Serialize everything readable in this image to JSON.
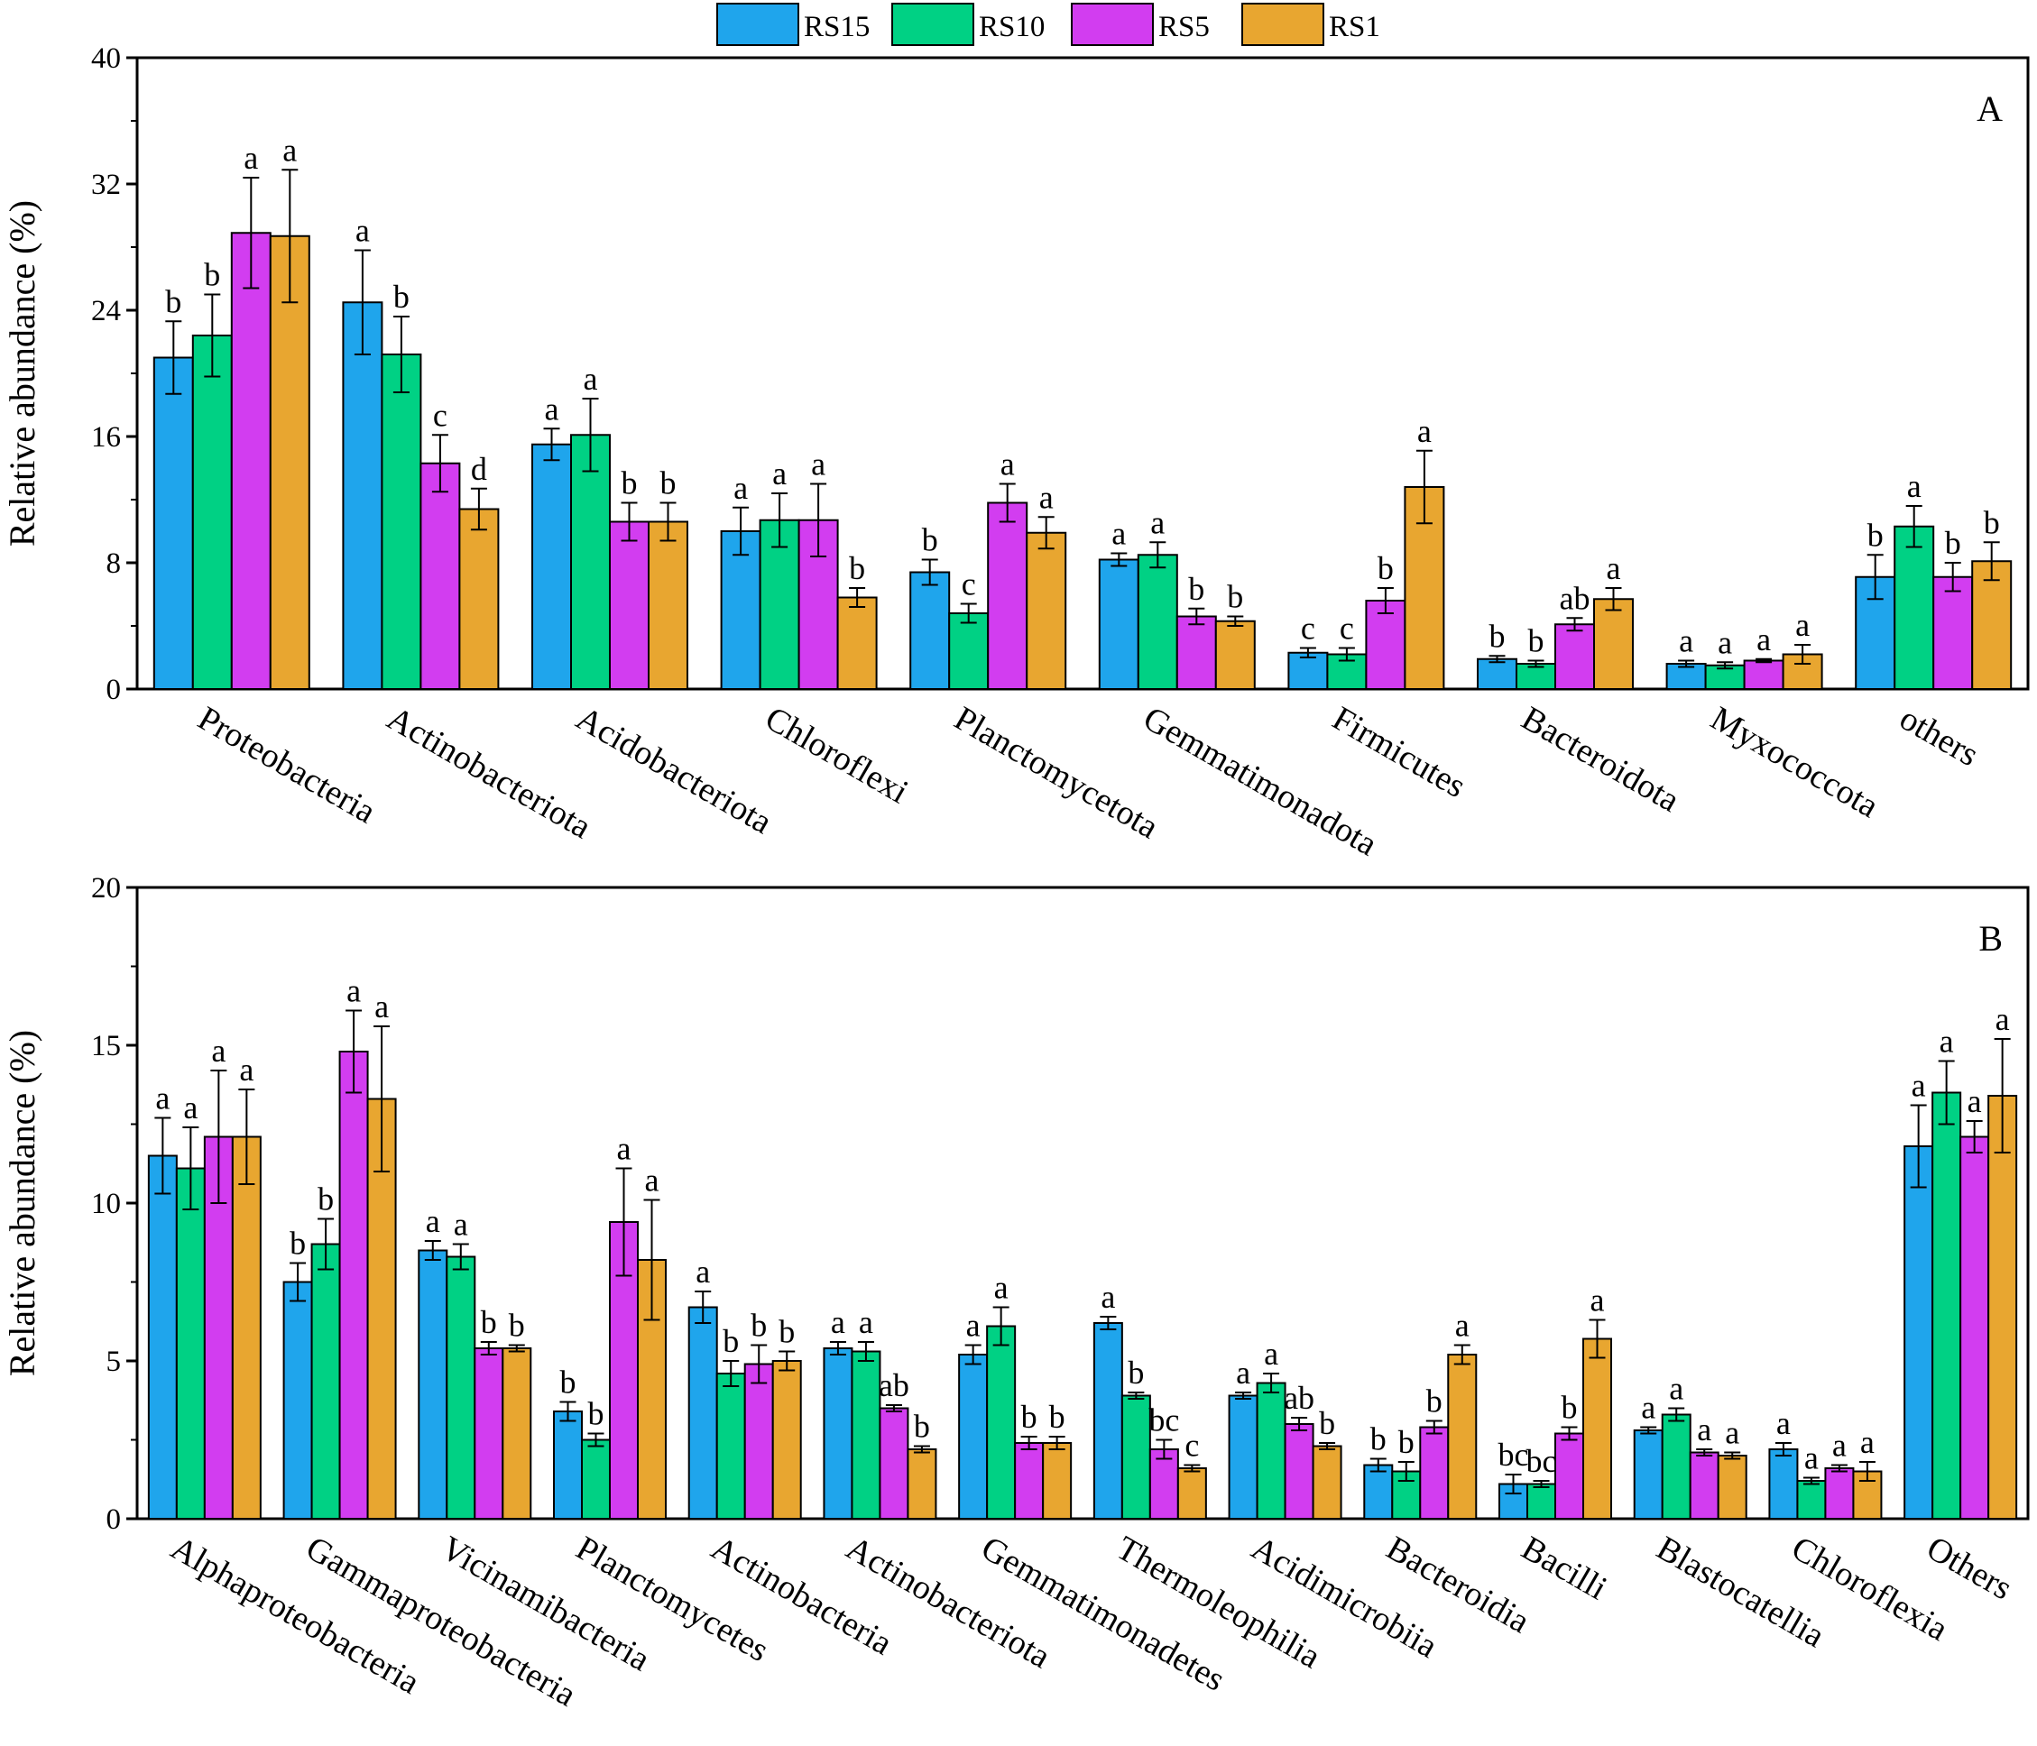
{
  "legend": {
    "series": [
      {
        "name": "RS15",
        "color": "#1fa5ec"
      },
      {
        "name": "RS10",
        "color": "#00d184"
      },
      {
        "name": "RS5",
        "color": "#d23df0"
      },
      {
        "name": "RS1",
        "color": "#e8a630"
      }
    ]
  },
  "chart_data": [
    {
      "type": "bar",
      "panel_label": "A",
      "ylabel": "Relative abundance (%)",
      "ylim": [
        0,
        40
      ],
      "yticks": [
        0,
        8,
        16,
        24,
        32,
        40
      ],
      "grid": false,
      "legend_position": "top-center",
      "categories": [
        "Proteobacteria",
        "Actinobacteriota",
        "Acidobacteriota",
        "Chloroflexi",
        "Planctomycetota",
        "Gemmatimonadota",
        "Firmicutes",
        "Bacteroidota",
        "Myxococcota",
        "others"
      ],
      "series": [
        {
          "name": "RS15",
          "values": [
            21.0,
            24.5,
            15.5,
            10.0,
            7.4,
            8.2,
            2.3,
            1.9,
            1.6,
            7.1
          ],
          "errors": [
            2.3,
            3.3,
            1.0,
            1.5,
            0.8,
            0.4,
            0.3,
            0.2,
            0.2,
            1.4
          ],
          "letters": [
            "b",
            "a",
            "a",
            "a",
            "b",
            "a",
            "c",
            "b",
            "a",
            "b"
          ]
        },
        {
          "name": "RS10",
          "values": [
            22.4,
            21.2,
            16.1,
            10.7,
            4.8,
            8.5,
            2.2,
            1.6,
            1.5,
            10.3
          ],
          "errors": [
            2.6,
            2.4,
            2.3,
            1.7,
            0.6,
            0.8,
            0.4,
            0.2,
            0.2,
            1.3
          ],
          "letters": [
            "b",
            "b",
            "a",
            "a",
            "c",
            "a",
            "c",
            "b",
            "a",
            "a"
          ]
        },
        {
          "name": "RS5",
          "values": [
            28.9,
            14.3,
            10.6,
            10.7,
            11.8,
            4.6,
            5.6,
            4.1,
            1.8,
            7.1
          ],
          "errors": [
            3.5,
            1.8,
            1.2,
            2.3,
            1.2,
            0.5,
            0.8,
            0.4,
            0.1,
            0.9
          ],
          "letters": [
            "a",
            "c",
            "b",
            "a",
            "a",
            "b",
            "b",
            "ab",
            "a",
            "b"
          ]
        },
        {
          "name": "RS1",
          "values": [
            28.7,
            11.4,
            10.6,
            5.8,
            9.9,
            4.3,
            12.8,
            5.7,
            2.2,
            8.1
          ],
          "errors": [
            4.2,
            1.3,
            1.2,
            0.6,
            1.0,
            0.3,
            2.3,
            0.7,
            0.6,
            1.2
          ],
          "letters": [
            "a",
            "d",
            "b",
            "b",
            "a",
            "b",
            "a",
            "a",
            "a",
            "b"
          ]
        }
      ]
    },
    {
      "type": "bar",
      "panel_label": "B",
      "ylabel": "Relative abundance (%)",
      "ylim": [
        0,
        20
      ],
      "yticks": [
        0,
        5,
        10,
        15,
        20
      ],
      "grid": false,
      "categories": [
        "Alphaproteobacteria",
        "Gammaproteobacteria",
        "Vicinamibacteria",
        "Planctomycetes",
        "Actinobacteria",
        "Actinobacteriota",
        "Gemmatimonadetes",
        "Thermoleophilia",
        "Acidimicrobiia",
        "Bacteroidia",
        "Bacilli",
        "Blastocatellia",
        "Chloroflexia",
        "Others"
      ],
      "series": [
        {
          "name": "RS15",
          "values": [
            11.5,
            7.5,
            8.5,
            3.4,
            6.7,
            5.4,
            5.2,
            6.2,
            3.9,
            1.7,
            1.1,
            2.8,
            2.2,
            11.8
          ],
          "errors": [
            1.2,
            0.6,
            0.3,
            0.3,
            0.5,
            0.2,
            0.3,
            0.2,
            0.1,
            0.2,
            0.3,
            0.1,
            0.2,
            1.3
          ],
          "letters": [
            "a",
            "b",
            "a",
            "b",
            "a",
            "a",
            "a",
            "a",
            "a",
            "b",
            "bc",
            "a",
            "a",
            "a"
          ]
        },
        {
          "name": "RS10",
          "values": [
            11.1,
            8.7,
            8.3,
            2.5,
            4.6,
            5.3,
            6.1,
            3.9,
            4.3,
            1.5,
            1.1,
            3.3,
            1.2,
            13.5
          ],
          "errors": [
            1.3,
            0.8,
            0.4,
            0.2,
            0.4,
            0.3,
            0.6,
            0.1,
            0.3,
            0.3,
            0.1,
            0.2,
            0.1,
            1.0
          ],
          "letters": [
            "a",
            "b",
            "a",
            "b",
            "b",
            "a",
            "a",
            "b",
            "a",
            "b",
            "bc",
            "a",
            "a",
            "a"
          ]
        },
        {
          "name": "RS5",
          "values": [
            12.1,
            14.8,
            5.4,
            9.4,
            4.9,
            3.5,
            2.4,
            2.2,
            3.0,
            2.9,
            2.7,
            2.1,
            1.6,
            12.1
          ],
          "errors": [
            2.1,
            1.3,
            0.2,
            1.7,
            0.6,
            0.1,
            0.2,
            0.3,
            0.2,
            0.2,
            0.2,
            0.1,
            0.1,
            0.5
          ],
          "letters": [
            "a",
            "a",
            "b",
            "a",
            "b",
            "ab",
            "b",
            "bc",
            "ab",
            "b",
            "b",
            "a",
            "a",
            "a"
          ]
        },
        {
          "name": "RS1",
          "values": [
            12.1,
            13.3,
            5.4,
            8.2,
            5.0,
            2.2,
            2.4,
            1.6,
            2.3,
            5.2,
            5.7,
            2.0,
            1.5,
            13.4
          ],
          "errors": [
            1.5,
            2.3,
            0.1,
            1.9,
            0.3,
            0.1,
            0.2,
            0.1,
            0.1,
            0.3,
            0.6,
            0.1,
            0.3,
            1.8
          ],
          "letters": [
            "a",
            "a",
            "b",
            "a",
            "b",
            "b",
            "b",
            "c",
            "b",
            "a",
            "a",
            "a",
            "a",
            "a"
          ]
        }
      ]
    }
  ]
}
